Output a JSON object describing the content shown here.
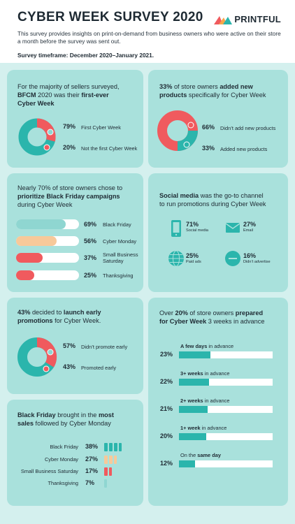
{
  "header": {
    "title": "CYBER WEEK SURVEY 2020",
    "logo": "PRINTFUL",
    "intro": "This survey provides insights on print-on-demand from business owners who were active on their store a month before the survey was sent out.",
    "timeframe": "Survey timeframe: December 2020–January 2021."
  },
  "colors": {
    "teal": "#2bb5ac",
    "red": "#f05a5e",
    "light_teal": "#8fd6d1",
    "peach": "#f7c99a",
    "card": "#a9e1dc",
    "bg": "#d4f0ee"
  },
  "card1": {
    "head_a": "For the majority of sellers surveyed,",
    "head_b": "BFCM",
    "head_c": " 2020 was their ",
    "head_d": "first-ever",
    "head_e": "Cyber Week",
    "items": [
      {
        "pct": "79%",
        "label": "First Cyber Week"
      },
      {
        "pct": "20%",
        "label": "Not the first Cyber Week"
      }
    ],
    "chart_data": {
      "type": "pie",
      "categories": [
        "First Cyber Week",
        "Not the first Cyber Week"
      ],
      "values": [
        79,
        20
      ]
    }
  },
  "card2": {
    "head_a": "33%",
    "head_b": " of store owners ",
    "head_c": "added new",
    "head_d": "products",
    "head_e": " specifically for Cyber Week",
    "items": [
      {
        "pct": "66%",
        "label": "Didn’t add new products"
      },
      {
        "pct": "33%",
        "label": "Added new products"
      }
    ],
    "chart_data": {
      "type": "pie",
      "categories": [
        "Didn’t add new products",
        "Added new products"
      ],
      "values": [
        66,
        33
      ]
    }
  },
  "card3": {
    "head_a": "Nearly 70% of store owners chose to",
    "head_b": "prioritize Black Friday campaigns",
    "head_c": "during Cyber Week",
    "items": [
      {
        "pct": "69%",
        "label": "Black Friday",
        "value": 69,
        "color": "#8fd6d1"
      },
      {
        "pct": "56%",
        "label": "Cyber Monday",
        "value": 56,
        "color": "#f7c99a"
      },
      {
        "pct": "37%",
        "label": "Small Business Saturday",
        "value": 37,
        "color": "#f05a5e"
      },
      {
        "pct": "25%",
        "label": "Thanksgiving",
        "value": 25,
        "color": "#f05a5e"
      }
    ]
  },
  "card4": {
    "head_a": "Social media",
    "head_b": " was the go-to channel",
    "head_c": "to run promotions during Cyber Week",
    "items": [
      {
        "pct": "71%",
        "label": "Social media",
        "icon": "phone-icon"
      },
      {
        "pct": "27%",
        "label": "Email",
        "icon": "envelope-icon"
      },
      {
        "pct": "25%",
        "label": "Paid ads",
        "icon": "globe-icon"
      },
      {
        "pct": "16%",
        "label": "Didn’t advertise",
        "icon": "minus-icon"
      }
    ]
  },
  "card5": {
    "head_a": "43%",
    "head_b": " decided to ",
    "head_c": "launch early",
    "head_d": "promotions",
    "head_e": " for Cyber Week.",
    "items": [
      {
        "pct": "57%",
        "label": "Didn’t promote early"
      },
      {
        "pct": "43%",
        "label": "Promoted early"
      }
    ],
    "chart_data": {
      "type": "pie",
      "categories": [
        "Didn’t promote early",
        "Promoted early"
      ],
      "values": [
        57,
        43
      ]
    }
  },
  "card6": {
    "head_a": "Over ",
    "head_b": "20%",
    "head_c": " of store owners ",
    "head_d": "prepared",
    "head_e": "for Cyber Week",
    "head_f": " 3 weeks in advance",
    "chart_data": {
      "type": "bar",
      "categories": [
        "A few days in advance",
        "3+ weeks in advance",
        "2+ weeks in advance",
        "1+ week in advance",
        "On the same day"
      ],
      "values": [
        23,
        22,
        21,
        20,
        12
      ]
    },
    "items": [
      {
        "pct": "23%",
        "bold": "A few days",
        "rest": " in advance",
        "value": 23
      },
      {
        "pct": "22%",
        "bold": "3+ weeks",
        "rest": " in advance",
        "value": 22
      },
      {
        "pct": "21%",
        "bold": "2+ weeks",
        "rest": " in advance",
        "value": 21
      },
      {
        "pct": "20%",
        "bold": "1+ week",
        "rest": " in advance",
        "value": 20
      },
      {
        "pct": "12%",
        "bold": "same day",
        "pre": "On the ",
        "rest": "",
        "value": 12
      }
    ]
  },
  "card7": {
    "head_a": "Black Friday",
    "head_b": " brought in the ",
    "head_c": "most",
    "head_d": "sales",
    "head_e": " followed by Cyber Monday",
    "chart_data": {
      "type": "bar",
      "categories": [
        "Black Friday",
        "Cyber Monday",
        "Small Business Saturday",
        "Thanksgiving"
      ],
      "values": [
        38,
        27,
        17,
        7
      ]
    },
    "items": [
      {
        "label": "Black Friday",
        "pct": "38%",
        "value": 38,
        "color": "#2bb5ac"
      },
      {
        "label": "Cyber Monday",
        "pct": "27%",
        "value": 27,
        "color": "#f7c99a"
      },
      {
        "label": "Small Business Saturday",
        "pct": "17%",
        "value": 17,
        "color": "#f05a5e"
      },
      {
        "label": "Thanksgiving",
        "pct": "7%",
        "value": 7,
        "color": "#8fd6d1"
      }
    ]
  }
}
